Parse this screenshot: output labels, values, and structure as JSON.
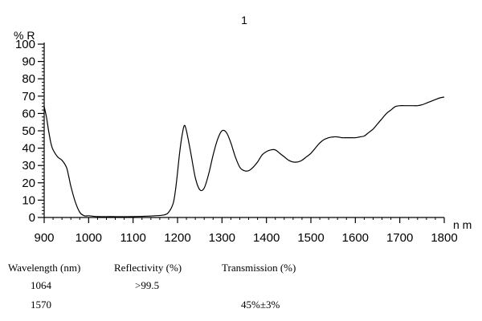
{
  "chart_data": {
    "type": "line",
    "title": "1",
    "ylabel": "% R",
    "xlabel": "n m",
    "xlim": [
      900,
      1800
    ],
    "ylim": [
      0,
      100
    ],
    "x_ticks": [
      900,
      1000,
      1100,
      1200,
      1300,
      1400,
      1500,
      1600,
      1700,
      1800
    ],
    "y_ticks": [
      0,
      10,
      20,
      30,
      40,
      50,
      60,
      70,
      80,
      90,
      100
    ],
    "grid": false,
    "line_color": "#000000",
    "series": [
      {
        "x": [
          900,
          905,
          910,
          915,
          920,
          930,
          940,
          950,
          955,
          960,
          970,
          980,
          990,
          1000,
          1020,
          1050,
          1100,
          1150,
          1170,
          1180,
          1190,
          1195,
          1200,
          1205,
          1210,
          1215,
          1220,
          1230,
          1240,
          1250,
          1260,
          1270,
          1280,
          1290,
          1300,
          1310,
          1320,
          1330,
          1340,
          1350,
          1360,
          1370,
          1380,
          1390,
          1400,
          1410,
          1420,
          1430,
          1440,
          1450,
          1460,
          1470,
          1480,
          1490,
          1500,
          1510,
          1520,
          1530,
          1540,
          1550,
          1560,
          1570,
          1580,
          1590,
          1600,
          1610,
          1620,
          1630,
          1640,
          1650,
          1660,
          1670,
          1680,
          1690,
          1700,
          1710,
          1720,
          1730,
          1740,
          1750,
          1760,
          1770,
          1780,
          1790,
          1800
        ],
        "y": [
          64,
          58,
          50,
          43,
          39,
          35,
          33,
          29,
          24,
          18,
          9,
          3,
          1,
          1,
          0.5,
          0.5,
          0.5,
          1,
          1.5,
          3,
          8,
          15,
          26,
          38,
          47,
          53,
          50,
          37,
          23,
          16,
          17,
          25,
          36,
          45,
          50,
          49,
          43,
          35,
          29,
          27,
          27,
          29,
          32,
          36,
          38,
          39,
          39,
          37,
          35,
          33,
          32,
          32,
          33,
          35,
          37,
          40,
          43,
          45,
          46,
          46.5,
          46.5,
          46,
          46,
          46,
          46,
          46.5,
          47,
          49,
          51,
          54,
          57,
          60,
          62,
          64,
          64.5,
          64.5,
          64.5,
          64.5,
          64.5,
          65,
          66,
          67,
          68,
          69,
          69.5
        ]
      }
    ]
  },
  "spec_table": {
    "headers": [
      "Wavelength (nm)",
      "Reflectivity (%)",
      "Transmission (%)"
    ],
    "rows": [
      [
        "1064",
        ">99.5",
        ""
      ],
      [
        "1570",
        "",
        "45%±3%"
      ]
    ]
  }
}
